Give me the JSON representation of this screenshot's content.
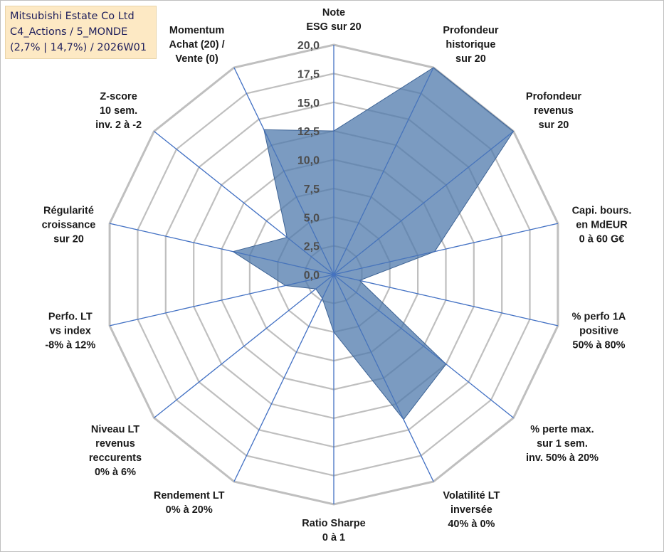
{
  "info_box": {
    "line1": "Mitsubishi Estate Co Ltd",
    "line2": "C4_Actions / 5_MONDE",
    "line3": "(2,7% | 14,7%) / 2026W01"
  },
  "colors": {
    "grid": "#bfbfbf",
    "spoke": "#4472c4",
    "fill": "#4f7aac",
    "fill_opacity": 0.75,
    "outline": "#3d6395"
  },
  "chart_data": {
    "type": "radar",
    "rmin": 0,
    "rmax": 20,
    "ticks": [
      "0,0",
      "2,5",
      "5,0",
      "7,5",
      "10,0",
      "12,5",
      "15,0",
      "17,5",
      "20,0"
    ],
    "tick_values": [
      0,
      2.5,
      5,
      7.5,
      10,
      12.5,
      15,
      17.5,
      20
    ],
    "axes": [
      {
        "label": [
          "Note",
          "ESG sur 20"
        ],
        "value": 12.5
      },
      {
        "label": [
          "Profondeur",
          "historique",
          "sur 20"
        ],
        "value": 20
      },
      {
        "label": [
          "Profondeur",
          "revenus",
          "sur 20"
        ],
        "value": 20
      },
      {
        "label": [
          "Capi. bours.",
          "en MdEUR",
          "0 à 60 G€"
        ],
        "value": 9.0
      },
      {
        "label": [
          "% perfo 1A",
          "positive",
          "50% à 80%"
        ],
        "value": 2.3
      },
      {
        "label": [
          "% perte max.",
          "sur 1 sem.",
          "inv. 50% à 20%"
        ],
        "value": 12.5
      },
      {
        "label": [
          "Volatilité LT",
          "inversée",
          "40% à 0%"
        ],
        "value": 14.0
      },
      {
        "label": [
          "Ratio Sharpe",
          "0 à 1"
        ],
        "value": 5.0
      },
      {
        "label": [
          "Rendement LT",
          "0% à 20%"
        ],
        "value": 2.3
      },
      {
        "label": [
          "Niveau LT",
          "revenus",
          "reccurents",
          "0% à 6%"
        ],
        "value": 2.0
      },
      {
        "label": [
          "Perfo. LT",
          "vs index",
          "-8% à 12%"
        ],
        "value": 4.3
      },
      {
        "label": [
          "Régularité",
          "croissance",
          "sur 20"
        ],
        "value": 9.0
      },
      {
        "label": [
          "Z-score",
          "10 sem.",
          "inv. 2 à -2"
        ],
        "value": 5.2
      },
      {
        "label": [
          "Momentum",
          "Achat (20) /",
          "Vente (0)"
        ],
        "value": 14.0
      }
    ]
  }
}
